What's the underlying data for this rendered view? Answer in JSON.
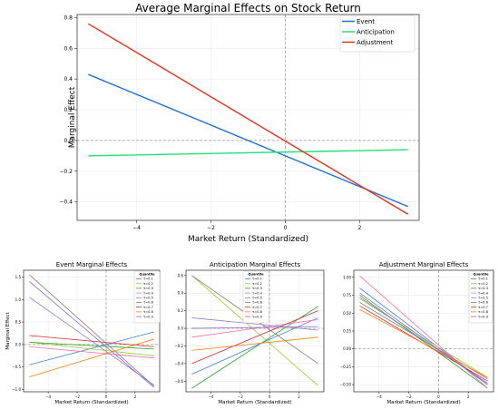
{
  "chart_data": [
    {
      "type": "line",
      "title": "Average Marginal Effects on Stock Return",
      "xlabel": "Market Return (Standardized)",
      "ylabel": "Marginal Effect",
      "xlim": [
        -5.6,
        3.6
      ],
      "ylim": [
        -0.52,
        0.82
      ],
      "xticks": [
        -4,
        -2,
        0,
        2
      ],
      "yticks": [
        -0.4,
        -0.2,
        0.0,
        0.2,
        0.4,
        0.6,
        0.8
      ],
      "xtick_labels": [
        "−4",
        "−2",
        "0",
        "2"
      ],
      "ytick_labels": [
        "−0.4",
        "−0.2",
        "0.0",
        "0.2",
        "0.4",
        "0.6",
        "0.8"
      ],
      "grid": true,
      "legend_position": "upper right",
      "reference_lines": {
        "x": 0,
        "y": 0
      },
      "series": [
        {
          "name": "Event",
          "color": "#1f6fd6",
          "x": [
            -5.3,
            3.3
          ],
          "y": [
            0.43,
            -0.43
          ]
        },
        {
          "name": "Anticipation",
          "color": "#22e07a",
          "x": [
            -5.3,
            3.3
          ],
          "y": [
            -0.1,
            -0.06
          ]
        },
        {
          "name": "Adjustment",
          "color": "#e8311c",
          "x": [
            -5.3,
            3.3
          ],
          "y": [
            0.76,
            -0.48
          ]
        }
      ]
    },
    {
      "type": "line",
      "title": "Event Marginal Effects",
      "xlabel": "Market Return (Standardized)",
      "ylabel": "Marginal Effect",
      "xlim": [
        -5.7,
        3.7
      ],
      "ylim": [
        -1.05,
        1.65
      ],
      "xticks": [
        -4,
        -2,
        0,
        2
      ],
      "yticks": [
        -1.0,
        -0.5,
        0.0,
        0.5,
        1.0,
        1.5
      ],
      "xtick_labels": [
        "−4",
        "−2",
        "0",
        "2"
      ],
      "ytick_labels": [
        "−1.0",
        "−0.5",
        "0.0",
        "0.5",
        "1.0",
        "1.5"
      ],
      "grid": true,
      "legend_title": "Quantile",
      "legend_position": "upper right",
      "reference_lines": {
        "x": 0,
        "y": 0
      },
      "series": [
        {
          "name": "τ=0.1",
          "color": "#3a7fd5",
          "x": [
            -5.3,
            3.3
          ],
          "y": [
            -0.45,
            0.28
          ]
        },
        {
          "name": "τ=0.2",
          "color": "#9acd32",
          "x": [
            -5.3,
            3.3
          ],
          "y": [
            0.05,
            -0.25
          ]
        },
        {
          "name": "τ=0.3",
          "color": "#2ca02c",
          "x": [
            -5.3,
            3.3
          ],
          "y": [
            0.05,
            -0.1
          ]
        },
        {
          "name": "τ=0.4",
          "color": "#ff69b4",
          "x": [
            -5.3,
            3.3
          ],
          "y": [
            -0.05,
            -0.3
          ]
        },
        {
          "name": "τ=0.5",
          "color": "#8a7fd0",
          "x": [
            -5.3,
            3.3
          ],
          "y": [
            1.05,
            -0.9
          ]
        },
        {
          "name": "τ=0.6",
          "color": "#7f7f7f",
          "x": [
            -5.3,
            3.3
          ],
          "y": [
            1.55,
            -0.92
          ]
        },
        {
          "name": "τ=0.7",
          "color": "#d62728",
          "x": [
            -5.3,
            3.3
          ],
          "y": [
            0.2,
            -0.05
          ]
        },
        {
          "name": "τ=0.8",
          "color": "#ff7f0e",
          "x": [
            -5.3,
            3.3
          ],
          "y": [
            -0.72,
            0.12
          ]
        },
        {
          "name": "τ=0.9",
          "color": "#9467bd",
          "x": [
            -5.3,
            3.3
          ],
          "y": [
            1.4,
            -0.95
          ]
        }
      ]
    },
    {
      "type": "line",
      "title": "Anticipation Marginal Effects",
      "xlabel": "Market Return (Standardized)",
      "ylabel": "",
      "xlim": [
        -5.7,
        3.7
      ],
      "ylim": [
        -0.72,
        0.66
      ],
      "xticks": [
        -4,
        -2,
        0,
        2
      ],
      "yticks": [
        -0.6,
        -0.4,
        -0.2,
        0.0,
        0.2,
        0.4,
        0.6
      ],
      "xtick_labels": [
        "−4",
        "−2",
        "0",
        "2"
      ],
      "ytick_labels": [
        "−0.6",
        "−0.4",
        "−0.2",
        "0.0",
        "0.2",
        "0.4",
        "0.6"
      ],
      "grid": true,
      "legend_title": "Quantile",
      "legend_position": "upper right",
      "reference_lines": {
        "x": 0,
        "y": 0
      },
      "series": [
        {
          "name": "τ=0.1",
          "color": "#3a7fd5",
          "x": [
            -5.3,
            3.3
          ],
          "y": [
            -0.52,
            0.12
          ]
        },
        {
          "name": "τ=0.2",
          "color": "#9acd32",
          "x": [
            -5.3,
            3.3
          ],
          "y": [
            0.6,
            -0.65
          ]
        },
        {
          "name": "τ=0.3",
          "color": "#2ca02c",
          "x": [
            -5.3,
            3.3
          ],
          "y": [
            -0.68,
            0.25
          ]
        },
        {
          "name": "τ=0.4",
          "color": "#ff69b4",
          "x": [
            -5.3,
            3.3
          ],
          "y": [
            -0.1,
            0.1
          ]
        },
        {
          "name": "τ=0.5",
          "color": "#8a7fd0",
          "x": [
            -5.3,
            3.3
          ],
          "y": [
            0.12,
            -0.02
          ]
        },
        {
          "name": "τ=0.6",
          "color": "#7f7f7f",
          "x": [
            -5.3,
            3.3
          ],
          "y": [
            0.6,
            -0.4
          ]
        },
        {
          "name": "τ=0.7",
          "color": "#d62728",
          "x": [
            -5.3,
            3.3
          ],
          "y": [
            -0.4,
            0.2
          ]
        },
        {
          "name": "τ=0.8",
          "color": "#ff7f0e",
          "x": [
            -5.3,
            3.3
          ],
          "y": [
            -0.25,
            -0.1
          ]
        },
        {
          "name": "τ=0.9",
          "color": "#9467bd",
          "x": [
            -5.3,
            3.3
          ],
          "y": [
            0.0,
            0.02
          ]
        }
      ]
    },
    {
      "type": "line",
      "title": "Adjustment Marginal Effects",
      "xlabel": "Market Return (Standardized)",
      "ylabel": "",
      "xlim": [
        -5.7,
        3.7
      ],
      "ylim": [
        -0.6,
        1.1
      ],
      "xticks": [
        -4,
        -2,
        0,
        2
      ],
      "yticks": [
        -0.5,
        -0.25,
        0.0,
        0.25,
        0.5,
        0.75,
        1.0
      ],
      "xtick_labels": [
        "−4",
        "−2",
        "0",
        "2"
      ],
      "ytick_labels": [
        "−0.50",
        "−0.25",
        "0.00",
        "0.25",
        "0.50",
        "0.75",
        "1.00"
      ],
      "grid": true,
      "legend_title": "Quantile",
      "legend_position": "upper right",
      "reference_lines": {
        "x": 0,
        "y": 0
      },
      "series": [
        {
          "name": "τ=0.1",
          "color": "#3a7fd5",
          "x": [
            -5.3,
            3.3
          ],
          "y": [
            0.85,
            -0.5
          ]
        },
        {
          "name": "τ=0.2",
          "color": "#9acd32",
          "x": [
            -5.3,
            3.3
          ],
          "y": [
            0.7,
            -0.4
          ]
        },
        {
          "name": "τ=0.3",
          "color": "#2ca02c",
          "x": [
            -5.3,
            3.3
          ],
          "y": [
            0.75,
            -0.55
          ]
        },
        {
          "name": "τ=0.4",
          "color": "#ff69b4",
          "x": [
            -5.3,
            3.3
          ],
          "y": [
            1.02,
            -0.55
          ]
        },
        {
          "name": "τ=0.5",
          "color": "#8a7fd0",
          "x": [
            -5.3,
            3.3
          ],
          "y": [
            0.72,
            -0.48
          ]
        },
        {
          "name": "τ=0.6",
          "color": "#7f7f7f",
          "x": [
            -5.3,
            3.3
          ],
          "y": [
            0.65,
            -0.42
          ]
        },
        {
          "name": "τ=0.7",
          "color": "#d62728",
          "x": [
            -5.3,
            3.3
          ],
          "y": [
            0.6,
            -0.45
          ]
        },
        {
          "name": "τ=0.8",
          "color": "#ff7f0e",
          "x": [
            -5.3,
            3.3
          ],
          "y": [
            0.55,
            -0.4
          ]
        },
        {
          "name": "τ=0.9",
          "color": "#9467bd",
          "x": [
            -5.3,
            3.3
          ],
          "y": [
            0.78,
            -0.5
          ]
        }
      ]
    }
  ]
}
